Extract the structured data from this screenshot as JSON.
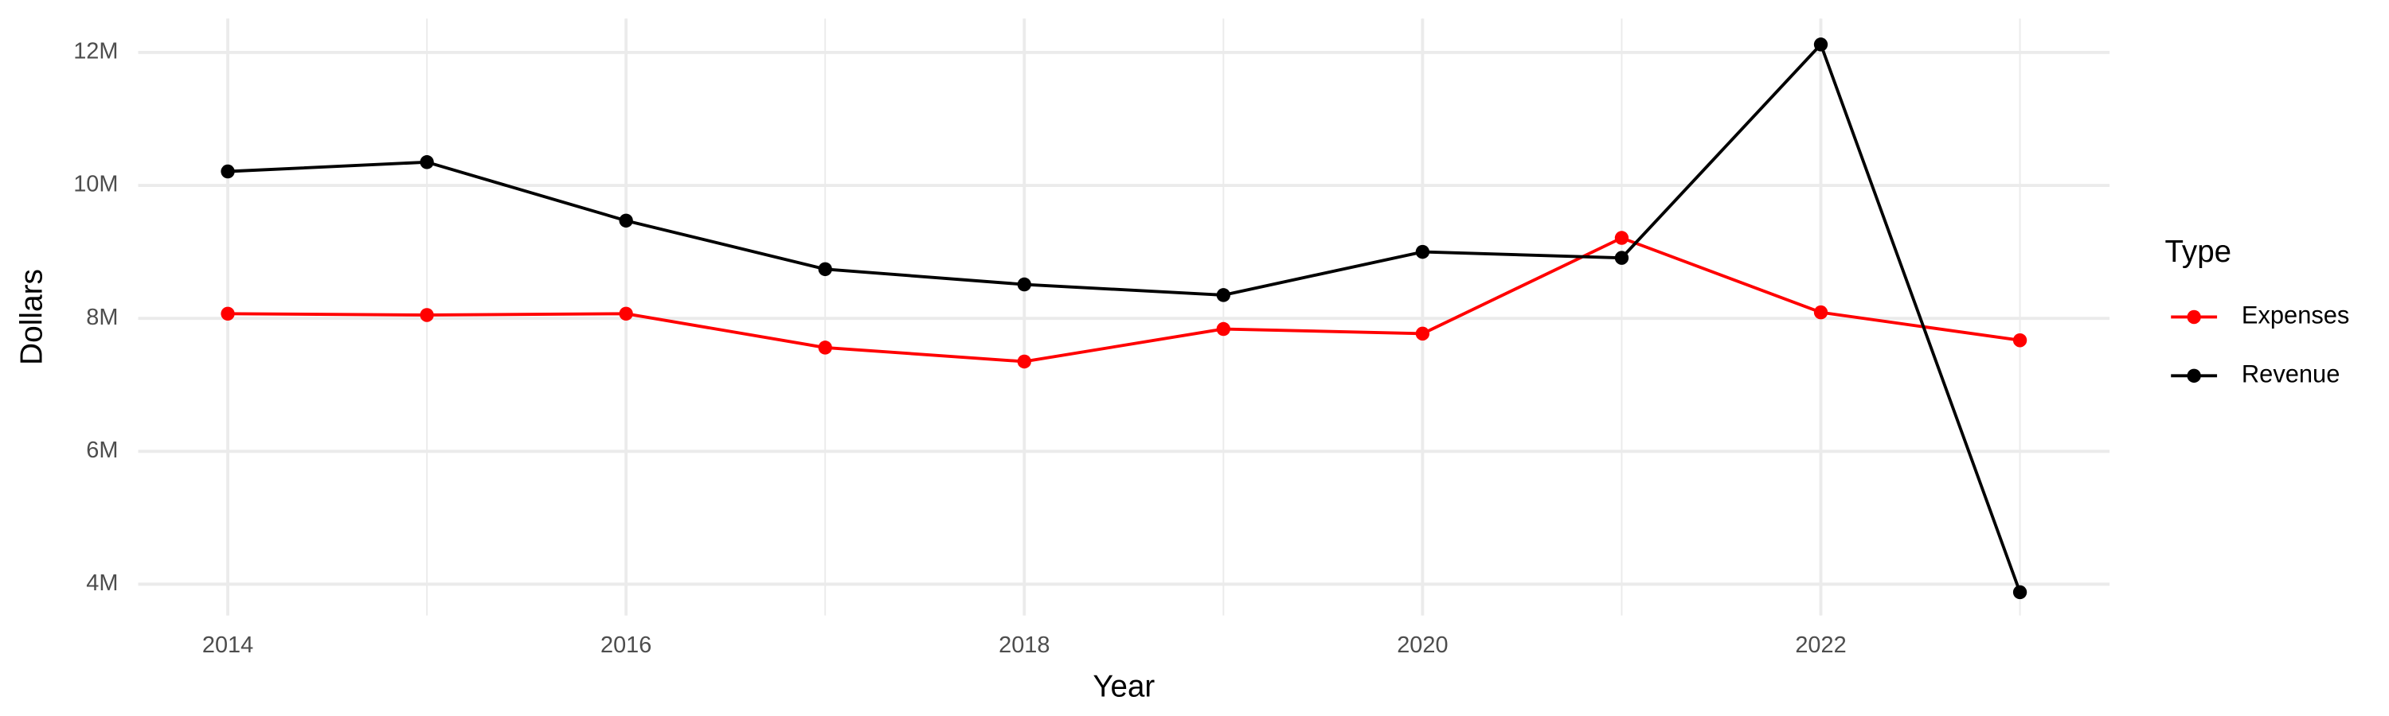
{
  "chart_data": {
    "type": "line",
    "x_label": "Year",
    "y_label": "Dollars",
    "legend_title": "Type",
    "legend_position": "right",
    "x": [
      2014,
      2015,
      2016,
      2017,
      2018,
      2019,
      2020,
      2021,
      2022,
      2023
    ],
    "series": [
      {
        "name": "Expenses",
        "color": "#ff0000",
        "values": [
          8070000,
          8050000,
          8070000,
          7560000,
          7350000,
          7840000,
          7770000,
          9210000,
          8090000,
          7670000
        ]
      },
      {
        "name": "Revenue",
        "color": "#000000",
        "values": [
          10210000,
          10350000,
          9470000,
          8740000,
          8510000,
          8350000,
          9000000,
          8910000,
          12120000,
          3880000
        ]
      }
    ],
    "xlim": [
      2013.55,
      2023.45
    ],
    "xticks": [
      2014,
      2016,
      2018,
      2020,
      2022
    ],
    "ylim": [
      3530000,
      12510000
    ],
    "yticks": [
      {
        "value": 4000000,
        "label": "4M"
      },
      {
        "value": 6000000,
        "label": "6M"
      },
      {
        "value": 8000000,
        "label": "8M"
      },
      {
        "value": 10000000,
        "label": "10M"
      },
      {
        "value": 12000000,
        "label": "12M"
      }
    ],
    "grid": true
  }
}
